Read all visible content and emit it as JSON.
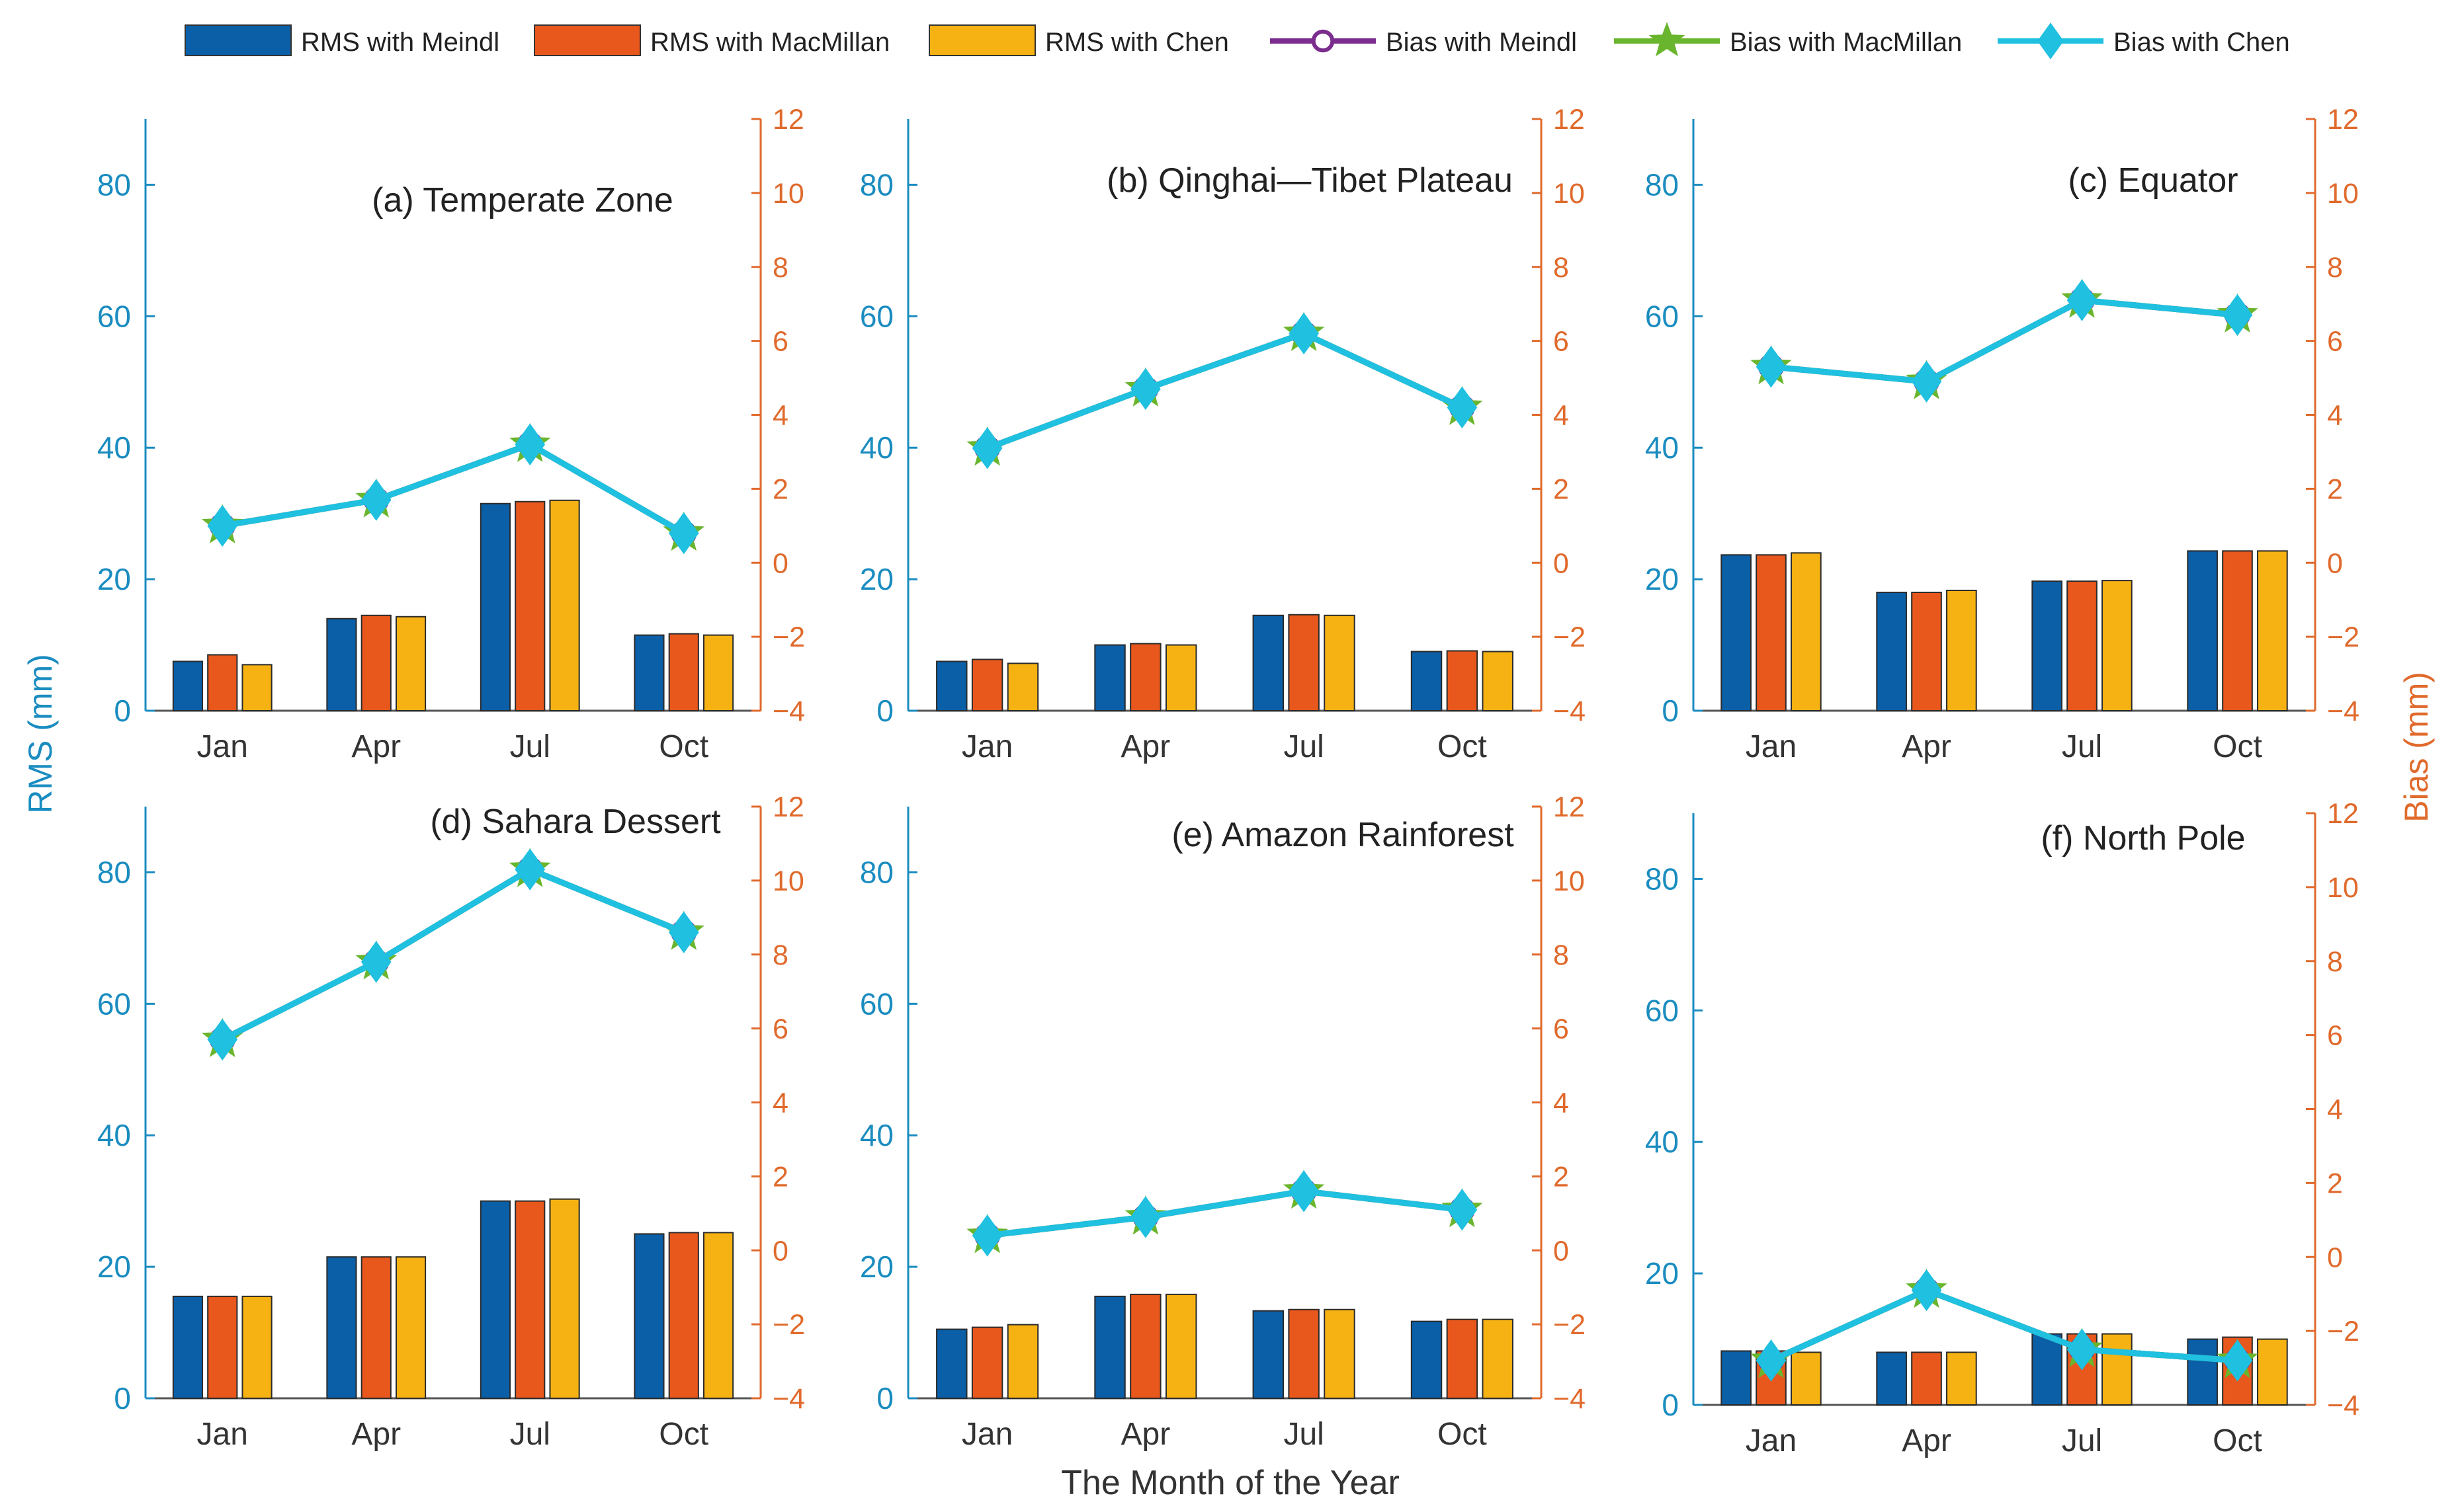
{
  "legend": [
    {
      "key": "rms_meindl",
      "label": "RMS with Meindl",
      "kind": "bar",
      "color": "#0a5fa7"
    },
    {
      "key": "rms_macmillan",
      "label": "RMS with MacMillan",
      "kind": "bar",
      "color": "#e8571c"
    },
    {
      "key": "rms_chen",
      "label": "RMS with Chen",
      "kind": "bar",
      "color": "#f6b213"
    },
    {
      "key": "bias_meindl",
      "label": "Bias with Meindl",
      "kind": "line",
      "marker": "circle",
      "color": "#7b2d8e"
    },
    {
      "key": "bias_macmillan",
      "label": "Bias with MacMillan",
      "kind": "line",
      "marker": "star",
      "color": "#6ab52e"
    },
    {
      "key": "bias_chen",
      "label": "Bias with Chen",
      "kind": "line",
      "marker": "diamond",
      "color": "#1fc0e0"
    }
  ],
  "labels": {
    "left_axis": "RMS (mm)",
    "right_axis": "Bias (mm)",
    "x_axis": "The Month of the Year"
  },
  "colors": {
    "left_axis": "#1a8cc0",
    "right_axis": "#e06a2c",
    "axis_text": "#333333"
  },
  "chart_data": [
    {
      "type": "bar+line",
      "title": "(a) Temperate Zone",
      "categories": [
        "Jan",
        "Apr",
        "Jul",
        "Oct"
      ],
      "ylim_left": [
        0,
        90
      ],
      "yticks_left": [
        0,
        20,
        40,
        60,
        80
      ],
      "ylim_right": [
        -4,
        12
      ],
      "yticks_right": [
        -4,
        -2,
        0,
        2,
        4,
        6,
        8,
        10,
        12
      ],
      "bars": [
        {
          "name": "RMS with Meindl",
          "values": [
            7.5,
            14,
            31.5,
            11.5
          ]
        },
        {
          "name": "RMS with MacMillan",
          "values": [
            8.5,
            14.5,
            31.8,
            11.7
          ]
        },
        {
          "name": "RMS with Chen",
          "values": [
            7,
            14.3,
            32,
            11.5
          ]
        }
      ],
      "lines": [
        {
          "name": "Bias with Meindl",
          "values": [
            1.0,
            1.7,
            3.2,
            0.8
          ]
        },
        {
          "name": "Bias with MacMillan",
          "values": [
            1.0,
            1.7,
            3.2,
            0.8
          ]
        },
        {
          "name": "Bias with Chen",
          "values": [
            1.0,
            1.7,
            3.2,
            0.8
          ]
        }
      ]
    },
    {
      "type": "bar+line",
      "title": "(b) Qinghai—Tibet Plateau",
      "categories": [
        "Jan",
        "Apr",
        "Jul",
        "Oct"
      ],
      "ylim_left": [
        0,
        90
      ],
      "yticks_left": [
        0,
        20,
        40,
        60,
        80
      ],
      "ylim_right": [
        -4,
        12
      ],
      "yticks_right": [
        -4,
        -2,
        0,
        2,
        4,
        6,
        8,
        10,
        12
      ],
      "bars": [
        {
          "name": "RMS with Meindl",
          "values": [
            7.5,
            10,
            14.5,
            9
          ]
        },
        {
          "name": "RMS with MacMillan",
          "values": [
            7.8,
            10.2,
            14.6,
            9.1
          ]
        },
        {
          "name": "RMS with Chen",
          "values": [
            7.2,
            10,
            14.5,
            9
          ]
        }
      ],
      "lines": [
        {
          "name": "Bias with Meindl",
          "values": [
            3.1,
            4.7,
            6.2,
            4.2
          ]
        },
        {
          "name": "Bias with MacMillan",
          "values": [
            3.1,
            4.7,
            6.2,
            4.2
          ]
        },
        {
          "name": "Bias with Chen",
          "values": [
            3.1,
            4.7,
            6.2,
            4.2
          ]
        }
      ]
    },
    {
      "type": "bar+line",
      "title": "(c) Equator",
      "categories": [
        "Jan",
        "Apr",
        "Jul",
        "Oct"
      ],
      "ylim_left": [
        0,
        90
      ],
      "yticks_left": [
        0,
        20,
        40,
        60,
        80
      ],
      "ylim_right": [
        -4,
        12
      ],
      "yticks_right": [
        -4,
        -2,
        0,
        2,
        4,
        6,
        8,
        10,
        12
      ],
      "bars": [
        {
          "name": "RMS with Meindl",
          "values": [
            23.7,
            18,
            19.7,
            24.3
          ]
        },
        {
          "name": "RMS with MacMillan",
          "values": [
            23.7,
            18,
            19.7,
            24.3
          ]
        },
        {
          "name": "RMS with Chen",
          "values": [
            24,
            18.3,
            19.8,
            24.3
          ]
        }
      ],
      "lines": [
        {
          "name": "Bias with Meindl",
          "values": [
            5.3,
            4.9,
            7.1,
            6.7
          ]
        },
        {
          "name": "Bias with MacMillan",
          "values": [
            5.3,
            4.9,
            7.1,
            6.7
          ]
        },
        {
          "name": "Bias with Chen",
          "values": [
            5.3,
            4.9,
            7.1,
            6.7
          ]
        }
      ]
    },
    {
      "type": "bar+line",
      "title": "(d) Sahara Dessert",
      "categories": [
        "Jan",
        "Apr",
        "Jul",
        "Oct"
      ],
      "ylim_left": [
        0,
        90
      ],
      "yticks_left": [
        0,
        20,
        40,
        60,
        80
      ],
      "ylim_right": [
        -4,
        12
      ],
      "yticks_right": [
        -4,
        -2,
        0,
        2,
        4,
        6,
        8,
        10,
        12
      ],
      "bars": [
        {
          "name": "RMS with Meindl",
          "values": [
            15.5,
            21.5,
            30,
            25
          ]
        },
        {
          "name": "RMS with MacMillan",
          "values": [
            15.5,
            21.5,
            30,
            25.2
          ]
        },
        {
          "name": "RMS with Chen",
          "values": [
            15.5,
            21.5,
            30.3,
            25.2
          ]
        }
      ],
      "lines": [
        {
          "name": "Bias with Meindl",
          "values": [
            5.7,
            7.8,
            10.3,
            8.6
          ]
        },
        {
          "name": "Bias with MacMillan",
          "values": [
            5.7,
            7.8,
            10.3,
            8.6
          ]
        },
        {
          "name": "Bias with Chen",
          "values": [
            5.7,
            7.8,
            10.3,
            8.6
          ]
        }
      ]
    },
    {
      "type": "bar+line",
      "title": "(e) Amazon Rainforest",
      "categories": [
        "Jan",
        "Apr",
        "Jul",
        "Oct"
      ],
      "ylim_left": [
        0,
        90
      ],
      "yticks_left": [
        0,
        20,
        40,
        60,
        80
      ],
      "ylim_right": [
        -4,
        12
      ],
      "yticks_right": [
        -4,
        -2,
        0,
        2,
        4,
        6,
        8,
        10,
        12
      ],
      "bars": [
        {
          "name": "RMS with Meindl",
          "values": [
            10.5,
            15.5,
            13.3,
            11.7
          ]
        },
        {
          "name": "RMS with MacMillan",
          "values": [
            10.8,
            15.8,
            13.5,
            12
          ]
        },
        {
          "name": "RMS with Chen",
          "values": [
            11.2,
            15.8,
            13.5,
            12
          ]
        }
      ],
      "lines": [
        {
          "name": "Bias with Meindl",
          "values": [
            0.4,
            0.9,
            1.6,
            1.1
          ]
        },
        {
          "name": "Bias with MacMillan",
          "values": [
            0.4,
            0.9,
            1.6,
            1.1
          ]
        },
        {
          "name": "Bias with Chen",
          "values": [
            0.4,
            0.9,
            1.6,
            1.1
          ]
        }
      ]
    },
    {
      "type": "bar+line",
      "title": "(f) North Pole",
      "categories": [
        "Jan",
        "Apr",
        "Jul",
        "Oct"
      ],
      "ylim_left": [
        0,
        90
      ],
      "yticks_left": [
        0,
        20,
        40,
        60,
        80
      ],
      "ylim_right": [
        -4,
        12
      ],
      "yticks_right": [
        -4,
        -2,
        0,
        2,
        4,
        6,
        8,
        10,
        12
      ],
      "bars": [
        {
          "name": "RMS with Meindl",
          "values": [
            8.2,
            8,
            10.8,
            10
          ]
        },
        {
          "name": "RMS with MacMillan",
          "values": [
            8.2,
            8,
            10.8,
            10.3
          ]
        },
        {
          "name": "RMS with Chen",
          "values": [
            8,
            8,
            10.8,
            10
          ]
        }
      ],
      "lines": [
        {
          "name": "Bias with Meindl",
          "values": [
            -2.8,
            -0.9,
            -2.5,
            -2.8
          ]
        },
        {
          "name": "Bias with MacMillan",
          "values": [
            -2.8,
            -0.9,
            -2.5,
            -2.8
          ]
        },
        {
          "name": "Bias with Chen",
          "values": [
            -2.8,
            -0.9,
            -2.5,
            -2.8
          ]
        }
      ]
    }
  ]
}
